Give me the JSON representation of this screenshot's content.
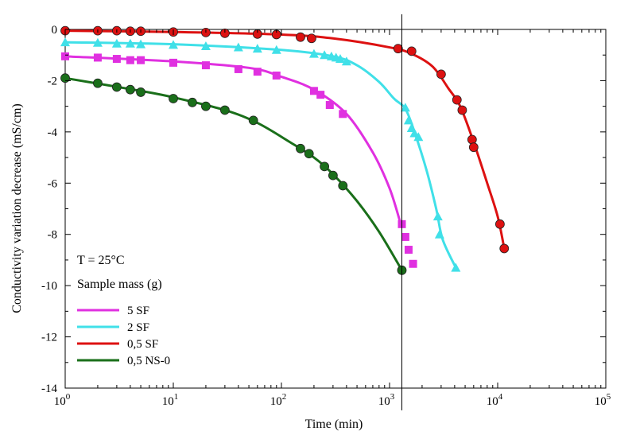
{
  "chart_data": {
    "type": "line",
    "xlabel": "Time (min)",
    "ylabel": "Conductivity variation decrease (mS/cm)",
    "xscale": "log",
    "xlim": [
      1,
      100000
    ],
    "ylim": [
      -14,
      0
    ],
    "x_ticks": [
      {
        "value": 1,
        "base": "10",
        "exp": "0"
      },
      {
        "value": 10,
        "base": "10",
        "exp": "1"
      },
      {
        "value": 100,
        "base": "10",
        "exp": "2"
      },
      {
        "value": 1000,
        "base": "10",
        "exp": "3"
      },
      {
        "value": 10000,
        "base": "10",
        "exp": "4"
      },
      {
        "value": 100000,
        "base": "10",
        "exp": "5"
      }
    ],
    "y_ticks": [
      {
        "value": 0,
        "label": "0"
      },
      {
        "value": -2,
        "label": "-2"
      },
      {
        "value": -4,
        "label": "-4"
      },
      {
        "value": -6,
        "label": "-6"
      },
      {
        "value": -8,
        "label": "-8"
      },
      {
        "value": -10,
        "label": "-10"
      },
      {
        "value": -12,
        "label": "-12"
      },
      {
        "value": -14,
        "label": "-14"
      }
    ],
    "grid": false,
    "reference_line": {
      "x": 1300
    },
    "annotations": [
      "T = 25°C",
      "Sample mass (g)"
    ],
    "legend_position": "bottom-left",
    "series": [
      {
        "name": "5 SF",
        "color": "#e030e0",
        "marker": "square",
        "points": [
          [
            1,
            -1.05
          ],
          [
            2,
            -1.1
          ],
          [
            3,
            -1.15
          ],
          [
            4,
            -1.2
          ],
          [
            5,
            -1.2
          ],
          [
            10,
            -1.3
          ],
          [
            20,
            -1.4
          ],
          [
            40,
            -1.55
          ],
          [
            60,
            -1.65
          ],
          [
            90,
            -1.8
          ],
          [
            200,
            -2.4
          ],
          [
            230,
            -2.55
          ],
          [
            280,
            -2.95
          ],
          [
            370,
            -3.3
          ],
          [
            1300,
            -7.6
          ],
          [
            1400,
            -8.1
          ],
          [
            1500,
            -8.6
          ],
          [
            1650,
            -9.15
          ]
        ],
        "curve": [
          [
            1,
            -1.05
          ],
          [
            10,
            -1.25
          ],
          [
            50,
            -1.5
          ],
          [
            100,
            -1.85
          ],
          [
            200,
            -2.35
          ],
          [
            400,
            -3.3
          ],
          [
            700,
            -4.8
          ],
          [
            1000,
            -6.2
          ],
          [
            1250,
            -7.5
          ]
        ]
      },
      {
        "name": "2 SF",
        "color": "#40e0e8",
        "marker": "triangle",
        "points": [
          [
            1,
            -0.5
          ],
          [
            2,
            -0.52
          ],
          [
            3,
            -0.55
          ],
          [
            4,
            -0.55
          ],
          [
            5,
            -0.58
          ],
          [
            10,
            -0.6
          ],
          [
            20,
            -0.65
          ],
          [
            40,
            -0.7
          ],
          [
            60,
            -0.75
          ],
          [
            90,
            -0.8
          ],
          [
            200,
            -0.95
          ],
          [
            250,
            -1.0
          ],
          [
            290,
            -1.05
          ],
          [
            320,
            -1.1
          ],
          [
            350,
            -1.15
          ],
          [
            400,
            -1.25
          ],
          [
            1400,
            -3.05
          ],
          [
            1500,
            -3.55
          ],
          [
            1600,
            -3.85
          ],
          [
            1700,
            -4.05
          ],
          [
            1850,
            -4.2
          ],
          [
            2800,
            -7.3
          ],
          [
            2900,
            -8.0
          ],
          [
            4100,
            -9.3
          ]
        ],
        "curve": [
          [
            1,
            -0.5
          ],
          [
            10,
            -0.58
          ],
          [
            100,
            -0.8
          ],
          [
            300,
            -1.05
          ],
          [
            500,
            -1.4
          ],
          [
            800,
            -2.05
          ],
          [
            1100,
            -2.7
          ],
          [
            1400,
            -3.1
          ],
          [
            1700,
            -4.0
          ],
          [
            2200,
            -5.5
          ],
          [
            2700,
            -7.0
          ],
          [
            3100,
            -8.2
          ],
          [
            4100,
            -9.3
          ]
        ]
      },
      {
        "name": "0,5 SF",
        "color": "#dd1111",
        "marker": "circle",
        "points": [
          [
            1,
            -0.05
          ],
          [
            2,
            -0.05
          ],
          [
            3,
            -0.05
          ],
          [
            4,
            -0.07
          ],
          [
            5,
            -0.07
          ],
          [
            10,
            -0.1
          ],
          [
            20,
            -0.12
          ],
          [
            30,
            -0.15
          ],
          [
            60,
            -0.18
          ],
          [
            90,
            -0.2
          ],
          [
            150,
            -0.3
          ],
          [
            190,
            -0.35
          ],
          [
            1200,
            -0.75
          ],
          [
            1600,
            -0.85
          ],
          [
            3000,
            -1.75
          ],
          [
            4200,
            -2.75
          ],
          [
            4700,
            -3.15
          ],
          [
            5800,
            -4.3
          ],
          [
            6000,
            -4.6
          ],
          [
            10500,
            -7.6
          ],
          [
            11500,
            -8.55
          ]
        ],
        "curve": [
          [
            1,
            -0.05
          ],
          [
            10,
            -0.1
          ],
          [
            100,
            -0.2
          ],
          [
            300,
            -0.35
          ],
          [
            1000,
            -0.7
          ],
          [
            1600,
            -0.95
          ],
          [
            2500,
            -1.45
          ],
          [
            3500,
            -2.3
          ],
          [
            4500,
            -3.0
          ],
          [
            6000,
            -4.4
          ],
          [
            8000,
            -6.0
          ],
          [
            10000,
            -7.3
          ],
          [
            11500,
            -8.55
          ]
        ]
      },
      {
        "name": "0,5 NS-0",
        "color": "#1a6f1a",
        "marker": "circle",
        "points": [
          [
            1,
            -1.9
          ],
          [
            2,
            -2.1
          ],
          [
            3,
            -2.25
          ],
          [
            4,
            -2.35
          ],
          [
            5,
            -2.45
          ],
          [
            10,
            -2.7
          ],
          [
            15,
            -2.85
          ],
          [
            20,
            -3.0
          ],
          [
            30,
            -3.15
          ],
          [
            55,
            -3.55
          ],
          [
            150,
            -4.65
          ],
          [
            180,
            -4.85
          ],
          [
            250,
            -5.35
          ],
          [
            300,
            -5.7
          ],
          [
            370,
            -6.1
          ],
          [
            1300,
            -9.4
          ]
        ],
        "curve": [
          [
            1,
            -1.9
          ],
          [
            5,
            -2.4
          ],
          [
            10,
            -2.65
          ],
          [
            30,
            -3.15
          ],
          [
            60,
            -3.65
          ],
          [
            120,
            -4.4
          ],
          [
            200,
            -5.0
          ],
          [
            300,
            -5.65
          ],
          [
            500,
            -6.7
          ],
          [
            800,
            -7.9
          ],
          [
            1300,
            -9.4
          ]
        ]
      }
    ]
  }
}
